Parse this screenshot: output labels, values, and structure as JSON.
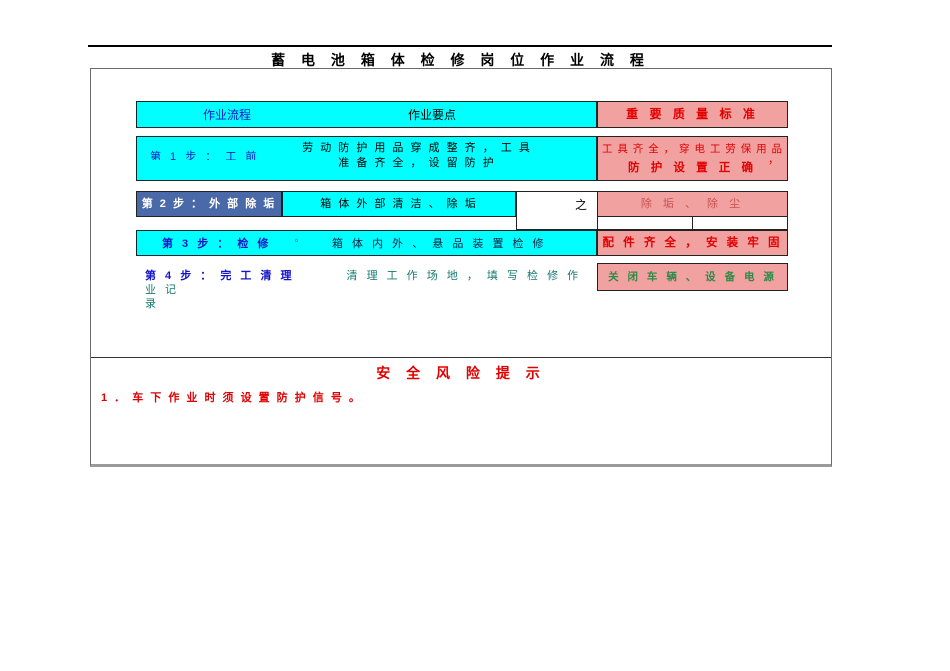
{
  "doc": {
    "title": "蓄  电  池  箱  体  检  修  岗  位  作  业  流  程"
  },
  "colors": {
    "cyan": "#00ffff",
    "pink": "#f2a1a1",
    "slate_blue": "#4a69a8",
    "step_blue": "#1414c8",
    "standard_red": "#e10000",
    "muted_red": "#c65050",
    "teal_green": "#157a70",
    "green": "#2e8b47"
  },
  "flow_table": {
    "header": {
      "col_process": "作业流程",
      "col_points": "作业要点",
      "col_standard": "重 要 质 量 标 准"
    },
    "row1": {
      "step": "第 1 步 ：  工 前",
      "points_line1": "劳 动 防 护 用 品 穿 成 整 齐 ， 工 具",
      "points_line2": "准 备 齐 全 ， 设 留 防 护",
      "standard_line1": "工 具 齐 全 ， 穿 电 工 劳 保 用 品",
      "standard_comma": "，",
      "standard_line2": "防 护 设 置 正 确"
    },
    "row2": {
      "step": "第 2 步 ： 外 部 除 垢",
      "points": "箱 体 外 部 清 洁 、 除 垢",
      "connector": "之",
      "standard": "除 垢 、 除 尘"
    },
    "row3": {
      "step": "第 3 步 ： 检 修",
      "mark": "。",
      "points": "箱 体 内 外 、 悬 品 装 置 检 修",
      "standard": "配 件 齐 全 ， 安 装 牢 固"
    },
    "row4": {
      "step": "第 4 步 ： 完 工 清 理",
      "points_line1": "清 理 工 作 场 地 ， 填 写 检 修 作 业 记",
      "points_line2": "录",
      "standard": "关 闭 车 辆 、 设 备 电 源"
    }
  },
  "safety": {
    "title": "安  全  风  险  提  示",
    "item1": "1 ． 车 下 作 业 时 须 设 置 防 护 信 号 。"
  }
}
